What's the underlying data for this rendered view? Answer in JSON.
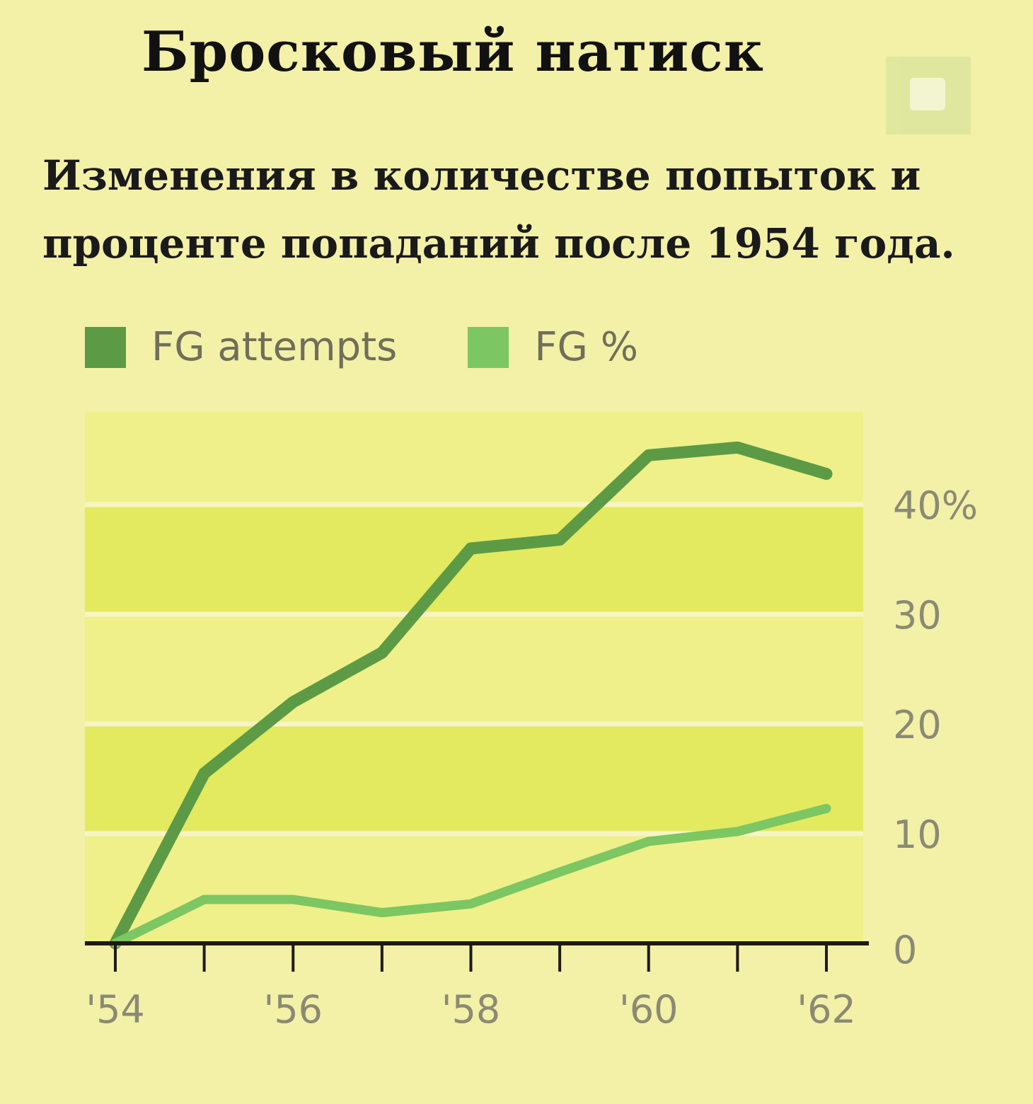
{
  "title": "Бросковый натиск",
  "subtitle_lines": [
    "Изменения в количестве попыток и",
    "проценте попаданий после 1954 года."
  ],
  "colors": {
    "attempts": "#5d9a46",
    "percent": "#7cc664",
    "plot_band_light": "#eff08a",
    "plot_band_dark": "#e3ea5f",
    "grid": "#f8f4c8",
    "axis": "#1e1a12"
  },
  "chart_data": {
    "type": "line",
    "x": [
      1954,
      1955,
      1956,
      1957,
      1958,
      1959,
      1960,
      1961,
      1962
    ],
    "x_tick_labels": [
      {
        "x": 1954,
        "label": "'54"
      },
      {
        "x": 1956,
        "label": "'56"
      },
      {
        "x": 1958,
        "label": "'58"
      },
      {
        "x": 1960,
        "label": "'60"
      },
      {
        "x": 1962,
        "label": "'62"
      }
    ],
    "y_ticks": [
      {
        "value": 0,
        "label": "0"
      },
      {
        "value": 10,
        "label": "10"
      },
      {
        "value": 20,
        "label": "20"
      },
      {
        "value": 30,
        "label": "30"
      },
      {
        "value": 40,
        "label": "40%"
      }
    ],
    "ylim": [
      0,
      48
    ],
    "grid": true,
    "y_axis_side": "right",
    "legend_position": "top-left",
    "series": [
      {
        "name": "FG attempts",
        "color_key": "attempts",
        "values": [
          0,
          15.5,
          22,
          26.5,
          36,
          36.8,
          44.5,
          45.2,
          42.8
        ]
      },
      {
        "name": "FG %",
        "color_key": "percent",
        "values": [
          0,
          4,
          4,
          2.8,
          3.6,
          6.5,
          9.3,
          10.2,
          12.3
        ]
      }
    ]
  }
}
